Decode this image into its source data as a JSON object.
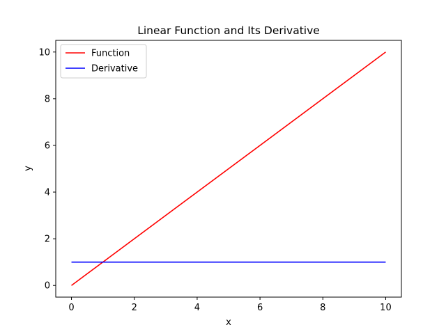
{
  "chart_data": {
    "type": "line",
    "title": "Linear Function and Its Derivative",
    "xlabel": "x",
    "ylabel": "y",
    "xlim": [
      -0.5,
      10.5
    ],
    "ylim": [
      -0.5,
      10.5
    ],
    "xticks": [
      0,
      2,
      4,
      6,
      8,
      10
    ],
    "yticks": [
      0,
      2,
      4,
      6,
      8,
      10
    ],
    "grid": false,
    "legend_position": "top-left",
    "series": [
      {
        "name": "Function",
        "color": "#ff0000",
        "x": [
          0,
          10
        ],
        "y": [
          0,
          10
        ]
      },
      {
        "name": "Derivative",
        "color": "#0000ff",
        "x": [
          0,
          10
        ],
        "y": [
          1,
          1
        ]
      }
    ]
  }
}
